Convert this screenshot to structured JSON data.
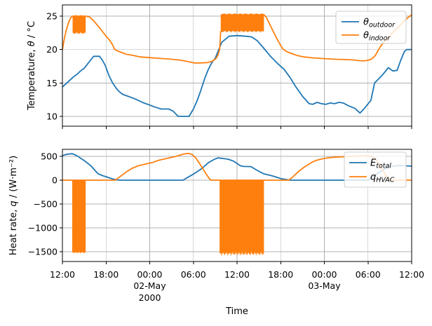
{
  "colors": {
    "outdoor_line": "#1f77b4",
    "indoor_line": "#ff7f0e",
    "grid": "#b0b0b0",
    "spine": "#000000",
    "legend_border": "#cccccc",
    "legend_bg": "#ffffff"
  },
  "x_axis": {
    "label": "Time",
    "lim": [
      0,
      48
    ],
    "ticks": [
      {
        "t": 0,
        "label": "12:00"
      },
      {
        "t": 6,
        "label": "18:00"
      },
      {
        "t": 12,
        "label": "00:00",
        "date": "02-May",
        "year": "2000"
      },
      {
        "t": 18,
        "label": "06:00"
      },
      {
        "t": 24,
        "label": "12:00"
      },
      {
        "t": 30,
        "label": "18:00"
      },
      {
        "t": 36,
        "label": "00:00",
        "date": "03-May"
      },
      {
        "t": 42,
        "label": "06:00"
      },
      {
        "t": 48,
        "label": "12:00"
      }
    ]
  },
  "chart_data": [
    {
      "type": "line",
      "name": "temperature-plot",
      "title": "",
      "ylabel": "Temperature, θ / °C",
      "ylabel_parts": [
        {
          "t": "Temperature, "
        },
        {
          "t": "θ",
          "i": true
        },
        {
          "t": " / °C"
        }
      ],
      "ylim": [
        8.53,
        26.69
      ],
      "yticks": [
        10,
        15,
        20,
        25
      ],
      "grid": true,
      "legend_position": "upper right",
      "series": [
        {
          "id": "theta-outdoor",
          "name": "θ_outdoor",
          "legend_main": "θ",
          "legend_sub": "outdoor",
          "color": "#1f77b4",
          "points": [
            [
              0,
              14.4
            ],
            [
              0.5,
              14.9
            ],
            [
              1,
              15.4
            ],
            [
              1.5,
              15.9
            ],
            [
              2,
              16.3
            ],
            [
              2.5,
              16.8
            ],
            [
              3,
              17.2
            ],
            [
              3.5,
              17.9
            ],
            [
              4,
              18.6
            ],
            [
              4.3,
              19
            ],
            [
              5.1,
              19
            ],
            [
              5.5,
              18.4
            ],
            [
              5.9,
              17.6
            ],
            [
              6.4,
              16.1
            ],
            [
              6.9,
              15
            ],
            [
              7.4,
              14.2
            ],
            [
              7.8,
              13.7
            ],
            [
              8.3,
              13.3
            ],
            [
              8.8,
              13.1
            ],
            [
              9.8,
              12.7
            ],
            [
              10.4,
              12.4
            ],
            [
              11.2,
              12
            ],
            [
              12,
              11.7
            ],
            [
              12.7,
              11.4
            ],
            [
              13.6,
              11.1
            ],
            [
              14.6,
              11.1
            ],
            [
              15.2,
              10.8
            ],
            [
              15.9,
              10
            ],
            [
              17.4,
              10
            ],
            [
              18,
              11.1
            ],
            [
              18.5,
              12.3
            ],
            [
              19,
              13.8
            ],
            [
              19.5,
              15.5
            ],
            [
              20,
              16.9
            ],
            [
              20.5,
              18
            ],
            [
              21,
              18.7
            ],
            [
              21.9,
              21.1
            ],
            [
              22.9,
              22
            ],
            [
              24,
              22.1
            ],
            [
              25.2,
              22
            ],
            [
              26,
              21.9
            ],
            [
              26.8,
              21.3
            ],
            [
              27.6,
              20.3
            ],
            [
              28.6,
              19
            ],
            [
              29.5,
              18
            ],
            [
              30.5,
              17
            ],
            [
              31.3,
              15.8
            ],
            [
              32.1,
              14.4
            ],
            [
              33,
              13
            ],
            [
              33.9,
              11.9
            ],
            [
              34.4,
              11.8
            ],
            [
              35,
              12.1
            ],
            [
              35.6,
              11.9
            ],
            [
              36.2,
              11.8
            ],
            [
              36.8,
              12
            ],
            [
              37.4,
              11.9
            ],
            [
              38,
              12.1
            ],
            [
              38.6,
              12
            ],
            [
              39.3,
              11.6
            ],
            [
              40.2,
              11.2
            ],
            [
              40.9,
              10.5
            ],
            [
              41.5,
              11.2
            ],
            [
              42.4,
              12.4
            ],
            [
              42.9,
              15
            ],
            [
              43.9,
              16.1
            ],
            [
              44.8,
              17.3
            ],
            [
              45.4,
              16.8
            ],
            [
              46,
              16.9
            ],
            [
              46.5,
              18.4
            ],
            [
              47,
              19.7
            ],
            [
              47.3,
              20
            ],
            [
              48,
              20
            ]
          ]
        },
        {
          "id": "theta-indoor",
          "name": "θ_indoor",
          "legend_main": "θ",
          "legend_sub": "indoor",
          "color": "#ff7f0e",
          "points": [
            [
              0,
              20
            ],
            [
              0.2,
              21.3
            ],
            [
              0.5,
              22.8
            ],
            [
              0.8,
              23.9
            ],
            [
              1.1,
              24.7
            ],
            [
              1.35,
              25
            ],
            [
              3.2,
              25
            ],
            [
              3.7,
              24.9
            ],
            [
              4.3,
              24.3
            ],
            [
              5,
              23.4
            ],
            [
              5.5,
              22.7
            ],
            [
              6,
              22
            ],
            [
              6.5,
              21.4
            ],
            [
              6.9,
              20.7
            ],
            [
              7.2,
              20
            ],
            [
              7.8,
              19.7
            ],
            [
              8.8,
              19.3
            ],
            [
              9.8,
              19.1
            ],
            [
              10.7,
              18.9
            ],
            [
              12,
              18.8
            ],
            [
              13.1,
              18.7
            ],
            [
              14.6,
              18.6
            ],
            [
              16,
              18.45
            ],
            [
              17.3,
              18.2
            ],
            [
              18.1,
              18
            ],
            [
              18.9,
              18
            ],
            [
              19.9,
              18.05
            ],
            [
              20.6,
              18.25
            ],
            [
              21.1,
              18.65
            ],
            [
              21.4,
              19.2
            ],
            [
              21.6,
              20
            ],
            [
              21.75,
              22.7
            ],
            [
              27.7,
              25.2
            ],
            [
              28,
              24.9
            ],
            [
              28.4,
              24
            ],
            [
              28.9,
              22.9
            ],
            [
              29.4,
              21.8
            ],
            [
              29.9,
              20.8
            ],
            [
              30.3,
              20.1
            ],
            [
              30.8,
              19.7
            ],
            [
              31.5,
              19.4
            ],
            [
              32.3,
              19.1
            ],
            [
              33.2,
              18.9
            ],
            [
              34.5,
              18.75
            ],
            [
              36,
              18.65
            ],
            [
              37.5,
              18.55
            ],
            [
              39,
              18.5
            ],
            [
              40,
              18.45
            ],
            [
              40.8,
              18.35
            ],
            [
              41.4,
              18.3
            ],
            [
              42,
              18.4
            ],
            [
              42.5,
              18.6
            ],
            [
              43,
              19.1
            ],
            [
              43.4,
              19.9
            ],
            [
              43.8,
              20.6
            ],
            [
              44.5,
              21.5
            ],
            [
              45.2,
              22.3
            ],
            [
              46,
              23.2
            ],
            [
              46.8,
              24.1
            ],
            [
              47.5,
              24.8
            ],
            [
              48,
              25.2
            ]
          ],
          "bands": [
            {
              "t0": 1.4,
              "t1": 3.2,
              "lo": 22.45,
              "hi": 25.1
            },
            {
              "t0": 21.75,
              "t1": 27.7,
              "lo": 22.7,
              "hi": 25.35
            }
          ]
        }
      ]
    },
    {
      "type": "line",
      "name": "heat-rate-plot",
      "title": "",
      "ylabel": "Heat rate, q / (W·m⁻²)",
      "ylabel_parts": [
        {
          "t": "Heat rate, "
        },
        {
          "t": "q",
          "i": true
        },
        {
          "t": " / (W·m⁻²)"
        }
      ],
      "ylim": [
        -1706,
        647
      ],
      "yticks": [
        500,
        0,
        -500,
        -1000,
        -1500
      ],
      "grid": true,
      "legend_position": "upper right",
      "series": [
        {
          "id": "e-total",
          "name": "E_total",
          "legend_main": "E",
          "legend_sub": "total",
          "color": "#1f77b4",
          "points": [
            [
              0,
              515
            ],
            [
              0.5,
              540
            ],
            [
              1,
              552
            ],
            [
              1.4,
              555
            ],
            [
              2,
              510
            ],
            [
              2.5,
              462
            ],
            [
              3,
              412
            ],
            [
              3.5,
              352
            ],
            [
              4,
              288
            ],
            [
              4.5,
              200
            ],
            [
              4.9,
              135
            ],
            [
              5.5,
              95
            ],
            [
              6,
              72
            ],
            [
              6.5,
              45
            ],
            [
              7,
              22
            ],
            [
              7.5,
              6
            ],
            [
              8,
              0
            ],
            [
              16.6,
              0
            ],
            [
              17,
              40
            ],
            [
              17.7,
              100
            ],
            [
              18.5,
              175
            ],
            [
              19.2,
              250
            ],
            [
              20.1,
              370
            ],
            [
              20.9,
              440
            ],
            [
              21.4,
              468
            ],
            [
              22.1,
              455
            ],
            [
              22.8,
              440
            ],
            [
              23.5,
              400
            ],
            [
              24.1,
              340
            ],
            [
              24.5,
              300
            ],
            [
              24.9,
              288
            ],
            [
              25.9,
              285
            ],
            [
              26.6,
              220
            ],
            [
              27.2,
              170
            ],
            [
              27.7,
              132
            ],
            [
              28.9,
              88
            ],
            [
              30.1,
              30
            ],
            [
              31.1,
              5
            ],
            [
              31.5,
              0
            ],
            [
              42,
              0
            ],
            [
              42.5,
              60
            ],
            [
              43.2,
              130
            ],
            [
              43.9,
              205
            ],
            [
              44.6,
              262
            ],
            [
              45.5,
              295
            ],
            [
              46.5,
              307
            ],
            [
              47.3,
              300
            ],
            [
              48,
              294
            ]
          ]
        },
        {
          "id": "q-hvac",
          "name": "q_HVAC",
          "legend_main": "q",
          "legend_sub": "HVAC",
          "color": "#ff7f0e",
          "points": [
            [
              0,
              0
            ],
            [
              7.3,
              0
            ],
            [
              7.8,
              60
            ],
            [
              8.4,
              130
            ],
            [
              9,
              195
            ],
            [
              9.6,
              250
            ],
            [
              10.4,
              300
            ],
            [
              11.4,
              338
            ],
            [
              12.4,
              372
            ],
            [
              13.3,
              420
            ],
            [
              14.3,
              455
            ],
            [
              15.6,
              500
            ],
            [
              16.6,
              545
            ],
            [
              17,
              558
            ],
            [
              17.4,
              560
            ],
            [
              17.8,
              540
            ],
            [
              18.3,
              470
            ],
            [
              18.8,
              360
            ],
            [
              19.3,
              240
            ],
            [
              19.8,
              120
            ],
            [
              20.2,
              30
            ],
            [
              20.45,
              0
            ],
            [
              31.1,
              0
            ],
            [
              31.6,
              60
            ],
            [
              32.1,
              130
            ],
            [
              32.6,
              200
            ],
            [
              33.2,
              270
            ],
            [
              33.8,
              330
            ],
            [
              34.4,
              385
            ],
            [
              35,
              420
            ],
            [
              35.8,
              450
            ],
            [
              36.6,
              470
            ],
            [
              37.5,
              483
            ],
            [
              38.9,
              495
            ],
            [
              40.5,
              505
            ],
            [
              41.8,
              510
            ],
            [
              42.3,
              508
            ],
            [
              42.8,
              475
            ],
            [
              43.3,
              395
            ],
            [
              43.8,
              275
            ],
            [
              44.3,
              140
            ],
            [
              44.7,
              40
            ],
            [
              45,
              0
            ],
            [
              48,
              0
            ]
          ],
          "blocks": [
            {
              "t0": 1.35,
              "t1": 3.2,
              "top": 0,
              "bottom": -1520,
              "jitter": 25
            },
            {
              "t0": 21.6,
              "t1": 27.7,
              "top": 0,
              "bottom": -1545,
              "jitter": 55
            }
          ]
        }
      ]
    }
  ]
}
